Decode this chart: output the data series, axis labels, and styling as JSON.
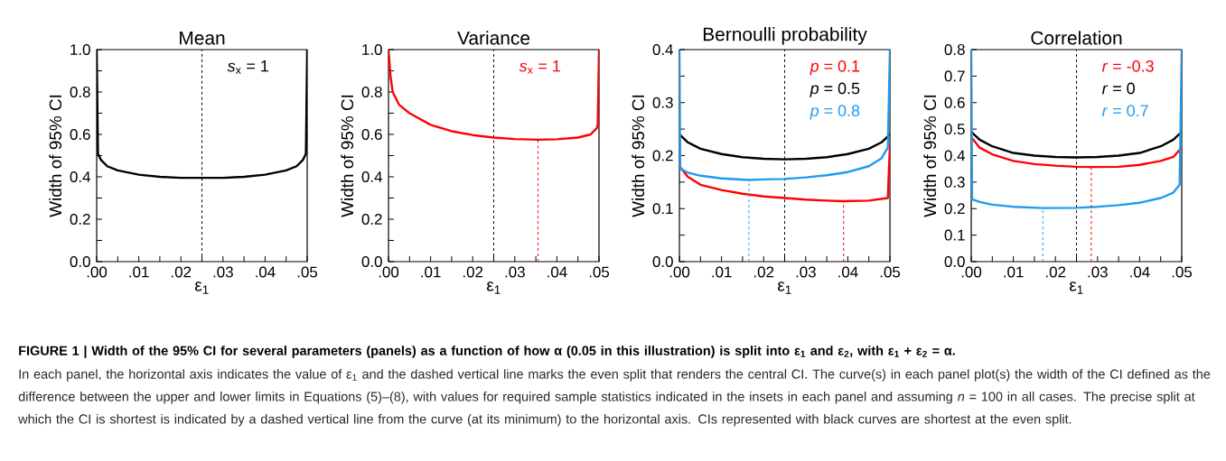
{
  "chart_data": [
    {
      "type": "line",
      "title": "Mean",
      "xlabel": "ε$_{1}$",
      "ylabel": "Width of 95% CI",
      "legend": "top right",
      "xlim": [
        0,
        0.05
      ],
      "ylim": [
        0,
        1.0
      ],
      "xticks": [
        {
          "value": 0,
          "label": ".00"
        },
        {
          "value": 0.005,
          "label": null
        },
        {
          "value": 0.01,
          "label": ".01"
        },
        {
          "value": 0.015,
          "label": null
        },
        {
          "value": 0.02,
          "label": ".02"
        },
        {
          "value": 0.025,
          "label": null
        },
        {
          "value": 0.03,
          "label": ".03"
        },
        {
          "value": 0.035,
          "label": null
        },
        {
          "value": 0.04,
          "label": ".04"
        },
        {
          "value": 0.045,
          "label": null
        },
        {
          "value": 0.05,
          "label": ".05"
        }
      ],
      "yticks": [
        {
          "value": 0,
          "label": "0.0"
        },
        {
          "value": 0.1,
          "label": null
        },
        {
          "value": 0.2,
          "label": "0.2"
        },
        {
          "value": 0.3,
          "label": null
        },
        {
          "value": 0.4,
          "label": "0.4"
        },
        {
          "value": 0.5,
          "label": null
        },
        {
          "value": 0.6,
          "label": "0.6"
        },
        {
          "value": 0.7,
          "label": null
        },
        {
          "value": 0.8,
          "label": "0.8"
        },
        {
          "value": 0.9,
          "label": null
        },
        {
          "value": 1.0,
          "label": "1.0"
        }
      ],
      "ref_lines": [
        {
          "axis": "x",
          "value": 0.025,
          "color": "#000000",
          "line_style": "dashed"
        }
      ],
      "series": [
        {
          "name": "*s*$_{x}$ = 1",
          "color": "#000000",
          "x": [
            0,
            0.0003,
            0.001,
            0.0025,
            0.005,
            0.01,
            0.015,
            0.02,
            0.025,
            0.03,
            0.035,
            0.04,
            0.045,
            0.0475,
            0.049,
            0.0497,
            0.05
          ],
          "values": [
            1.0,
            0.51,
            0.48,
            0.45,
            0.43,
            0.41,
            0.4,
            0.395,
            0.395,
            0.395,
            0.4,
            0.41,
            0.43,
            0.45,
            0.48,
            0.51,
            1.0
          ]
        }
      ],
      "annotations": [
        "FIGURE 1 | Width of the 95% CI for several parameters (panels) as a function of how α (0.05 in this illustration) is split into ε$_{1}$ and ε$_{2}$, with ε$_{1}$ + ε$_{2}$ = α.",
        "In each panel, the horizontal axis indicates the value of ε$_{1}$ and the dashed vertical line marks the even split that renders the central CI. The curve(s) in each panel plot(s) the width of the CI defined as the difference between the upper and lower limits in Equations (5)–(8), with values for required sample statistics indicated in the insets in each panel and assuming *n* = 100 in all cases. The precise split at which the CI is shortest is indicated by a dashed vertical line from the curve (at its minimum) to the horizontal axis. CIs represented with black curves are shortest at the even split."
      ]
    },
    {
      "type": "line",
      "title": "Variance",
      "xlabel": "ε$_{1}$",
      "ylabel": "Width of 95% CI",
      "legend": "top right",
      "xlim": [
        0,
        0.05
      ],
      "ylim": [
        0,
        1.0
      ],
      "xticks": [
        {
          "value": 0,
          "label": ".00"
        },
        {
          "value": 0.005,
          "label": null
        },
        {
          "value": 0.01,
          "label": ".01"
        },
        {
          "value": 0.015,
          "label": null
        },
        {
          "value": 0.02,
          "label": ".02"
        },
        {
          "value": 0.025,
          "label": null
        },
        {
          "value": 0.03,
          "label": ".03"
        },
        {
          "value": 0.035,
          "label": null
        },
        {
          "value": 0.04,
          "label": ".04"
        },
        {
          "value": 0.045,
          "label": null
        },
        {
          "value": 0.05,
          "label": ".05"
        }
      ],
      "yticks": [
        {
          "value": 0,
          "label": "0.0"
        },
        {
          "value": 0.1,
          "label": null
        },
        {
          "value": 0.2,
          "label": "0.2"
        },
        {
          "value": 0.3,
          "label": null
        },
        {
          "value": 0.4,
          "label": "0.4"
        },
        {
          "value": 0.5,
          "label": null
        },
        {
          "value": 0.6,
          "label": "0.6"
        },
        {
          "value": 0.7,
          "label": null
        },
        {
          "value": 0.8,
          "label": "0.8"
        },
        {
          "value": 0.9,
          "label": null
        },
        {
          "value": 1.0,
          "label": "1.0"
        }
      ],
      "ref_lines": [
        {
          "axis": "x",
          "value": 0.025,
          "color": "#000000",
          "line_style": "dashed"
        }
      ],
      "series": [
        {
          "name": "*s*$_{x}$ = 1",
          "color": "#ff0000",
          "x": [
            0,
            0.0005,
            0.001,
            0.0025,
            0.005,
            0.01,
            0.015,
            0.02,
            0.025,
            0.03,
            0.0355,
            0.04,
            0.045,
            0.048,
            0.0495,
            0.0497,
            0.05
          ],
          "values": [
            1.0,
            0.87,
            0.8,
            0.74,
            0.7,
            0.645,
            0.615,
            0.597,
            0.585,
            0.578,
            0.575,
            0.577,
            0.585,
            0.6,
            0.63,
            0.65,
            1.0
          ]
        },
        {
          "color": "#ff0000",
          "line_style": "dashed",
          "x": [
            0.0355,
            0.0355
          ],
          "values": [
            0,
            0.575
          ]
        }
      ]
    },
    {
      "type": "line",
      "title": "Bernoulli probability",
      "xlabel": "ε$_{1}$",
      "ylabel": "Width of 95% CI",
      "legend": "top right",
      "xlim": [
        0,
        0.05
      ],
      "ylim": [
        0,
        0.4
      ],
      "xticks": [
        {
          "value": 0,
          "label": ".00"
        },
        {
          "value": 0.005,
          "label": null
        },
        {
          "value": 0.01,
          "label": ".01"
        },
        {
          "value": 0.015,
          "label": null
        },
        {
          "value": 0.02,
          "label": ".02"
        },
        {
          "value": 0.025,
          "label": null
        },
        {
          "value": 0.03,
          "label": ".03"
        },
        {
          "value": 0.035,
          "label": null
        },
        {
          "value": 0.04,
          "label": ".04"
        },
        {
          "value": 0.045,
          "label": null
        },
        {
          "value": 0.05,
          "label": ".05"
        }
      ],
      "yticks": [
        {
          "value": 0,
          "label": "0.0"
        },
        {
          "value": 0.05,
          "label": null
        },
        {
          "value": 0.1,
          "label": "0.1"
        },
        {
          "value": 0.15,
          "label": null
        },
        {
          "value": 0.2,
          "label": "0.2"
        },
        {
          "value": 0.25,
          "label": null
        },
        {
          "value": 0.3,
          "label": "0.3"
        },
        {
          "value": 0.35,
          "label": null
        },
        {
          "value": 0.4,
          "label": "0.4"
        }
      ],
      "ref_lines": [
        {
          "axis": "x",
          "value": 0.025,
          "color": "#000000",
          "line_style": "dashed"
        }
      ],
      "series": [
        {
          "name": "*p* = 0.1",
          "color": "#ff0000",
          "x": [
            0,
            0.002,
            0.005,
            0.01,
            0.015,
            0.02,
            0.025,
            0.03,
            0.035,
            0.039,
            0.045,
            0.0495,
            0.05
          ],
          "values": [
            0.18,
            0.16,
            0.145,
            0.135,
            0.128,
            0.123,
            0.12,
            0.117,
            0.115,
            0.114,
            0.115,
            0.12,
            0.22
          ]
        },
        {
          "name": "*p* = 0.5",
          "color": "#000000",
          "x": [
            0,
            0.002,
            0.005,
            0.01,
            0.015,
            0.02,
            0.025,
            0.03,
            0.035,
            0.04,
            0.045,
            0.048,
            0.05
          ],
          "values": [
            0.24,
            0.225,
            0.213,
            0.203,
            0.197,
            0.194,
            0.193,
            0.194,
            0.197,
            0.203,
            0.213,
            0.225,
            0.24
          ]
        },
        {
          "name": "*p* = 0.8",
          "color": "#1e9bf0",
          "x": [
            0,
            0.0002,
            0.002,
            0.005,
            0.01,
            0.0165,
            0.02,
            0.025,
            0.03,
            0.035,
            0.04,
            0.045,
            0.048,
            0.0495,
            0.05
          ],
          "values": [
            0.4,
            0.175,
            0.168,
            0.162,
            0.157,
            0.154,
            0.155,
            0.156,
            0.159,
            0.163,
            0.169,
            0.18,
            0.195,
            0.215,
            0.4
          ]
        },
        {
          "color": "#1e9bf0",
          "line_style": "dashed",
          "x": [
            0.0165,
            0.0165
          ],
          "values": [
            0,
            0.154
          ]
        },
        {
          "color": "#ff0000",
          "line_style": "dashed",
          "x": [
            0.039,
            0.039
          ],
          "values": [
            0,
            0.114
          ]
        }
      ]
    },
    {
      "type": "line",
      "title": "Correlation",
      "xlabel": "ε$_{1}$",
      "ylabel": "Width of 95% CI",
      "legend": "top right",
      "xlim": [
        0,
        0.05
      ],
      "ylim": [
        0,
        0.8
      ],
      "xticks": [
        {
          "value": 0,
          "label": ".00"
        },
        {
          "value": 0.005,
          "label": null
        },
        {
          "value": 0.01,
          "label": ".01"
        },
        {
          "value": 0.015,
          "label": null
        },
        {
          "value": 0.02,
          "label": ".02"
        },
        {
          "value": 0.025,
          "label": null
        },
        {
          "value": 0.03,
          "label": ".03"
        },
        {
          "value": 0.035,
          "label": null
        },
        {
          "value": 0.04,
          "label": ".04"
        },
        {
          "value": 0.045,
          "label": null
        },
        {
          "value": 0.05,
          "label": ".05"
        }
      ],
      "yticks": [
        {
          "value": 0,
          "label": "0.0"
        },
        {
          "value": 0.1,
          "label": "0.1"
        },
        {
          "value": 0.2,
          "label": "0.2"
        },
        {
          "value": 0.3,
          "label": "0.3"
        },
        {
          "value": 0.4,
          "label": "0.4"
        },
        {
          "value": 0.5,
          "label": "0.5"
        },
        {
          "value": 0.6,
          "label": "0.6"
        },
        {
          "value": 0.7,
          "label": "0.7"
        },
        {
          "value": 0.8,
          "label": "0.8"
        }
      ],
      "ref_lines": [
        {
          "axis": "x",
          "value": 0.025,
          "color": "#000000",
          "line_style": "dashed"
        }
      ],
      "series": [
        {
          "name": "*r* = -0.3",
          "color": "#ff0000",
          "x": [
            0,
            0.002,
            0.005,
            0.01,
            0.015,
            0.02,
            0.025,
            0.0285,
            0.035,
            0.04,
            0.045,
            0.048,
            0.05
          ],
          "values": [
            0.47,
            0.43,
            0.405,
            0.38,
            0.368,
            0.362,
            0.358,
            0.357,
            0.358,
            0.365,
            0.38,
            0.395,
            0.43
          ]
        },
        {
          "name": "*r* = 0",
          "color": "#000000",
          "x": [
            0,
            0.002,
            0.005,
            0.01,
            0.015,
            0.02,
            0.025,
            0.03,
            0.035,
            0.04,
            0.045,
            0.048,
            0.05
          ],
          "values": [
            0.49,
            0.46,
            0.435,
            0.41,
            0.4,
            0.395,
            0.393,
            0.395,
            0.4,
            0.41,
            0.435,
            0.46,
            0.49
          ]
        },
        {
          "name": "*r* = 0.7",
          "color": "#1e9bf0",
          "x": [
            0,
            0.0002,
            0.002,
            0.005,
            0.01,
            0.017,
            0.025,
            0.03,
            0.035,
            0.04,
            0.045,
            0.048,
            0.0495,
            0.05
          ],
          "values": [
            0.8,
            0.235,
            0.225,
            0.215,
            0.207,
            0.202,
            0.203,
            0.207,
            0.213,
            0.222,
            0.24,
            0.26,
            0.29,
            0.8
          ]
        },
        {
          "color": "#1e9bf0",
          "line_style": "dashed",
          "x": [
            0.017,
            0.017
          ],
          "values": [
            0,
            0.202
          ]
        },
        {
          "color": "#ff0000",
          "line_style": "dashed",
          "x": [
            0.0285,
            0.0285
          ],
          "values": [
            0,
            0.357
          ]
        }
      ]
    }
  ]
}
